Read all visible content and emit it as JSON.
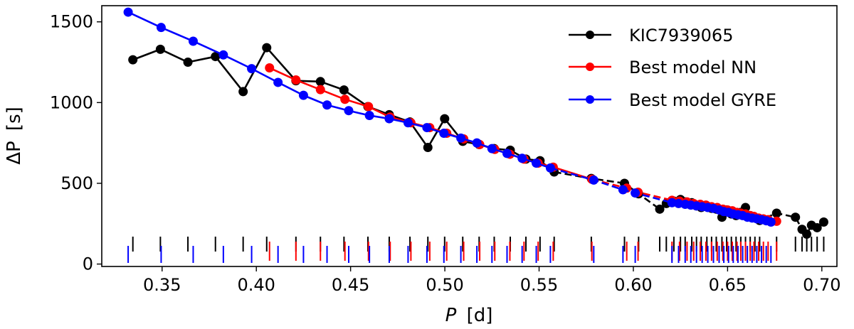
{
  "chart_data": {
    "type": "line",
    "xlabel_var": "P",
    "xlabel_unit": "[d]",
    "ylabel_var": "ΔP",
    "ylabel_unit": "[s]",
    "xlim": [
      0.318,
      0.708
    ],
    "ylim": [
      -15,
      1600
    ],
    "xticks": [
      0.35,
      0.4,
      0.45,
      0.5,
      0.55,
      0.6,
      0.65,
      0.7
    ],
    "xtick_labels": [
      "0.35",
      "0.40",
      "0.45",
      "0.50",
      "0.55",
      "0.60",
      "0.65",
      "0.70"
    ],
    "yticks": [
      0,
      500,
      1000,
      1500
    ],
    "ytick_labels": [
      "0",
      "500",
      "1000",
      "1500"
    ],
    "legend_position": "top-right",
    "series": [
      {
        "name": "KIC7939065",
        "color": "#000000",
        "x": [
          0.3345,
          0.3491,
          0.3637,
          0.3783,
          0.393,
          0.4055,
          0.421,
          0.434,
          0.4465,
          0.4592,
          0.4705,
          0.4815,
          0.491,
          0.4999,
          0.5095,
          0.5182,
          0.5262,
          0.5347,
          0.543,
          0.5505,
          0.558,
          0.5777,
          0.5953,
          0.6028,
          0.614,
          0.6175,
          0.6215,
          0.625,
          0.6275,
          0.631,
          0.6335,
          0.636,
          0.639,
          0.6415,
          0.644,
          0.647,
          0.6495,
          0.652,
          0.6545,
          0.657,
          0.6595,
          0.662,
          0.6645,
          0.667,
          0.676,
          0.686,
          0.6895,
          0.692,
          0.6945,
          0.6975,
          0.701
        ],
        "y": [
          1265,
          1330,
          1250,
          1285,
          1068,
          1340,
          1135,
          1130,
          1078,
          975,
          925,
          880,
          722,
          900,
          760,
          740,
          715,
          705,
          650,
          640,
          570,
          530,
          500,
          435,
          340,
          375,
          390,
          400,
          385,
          380,
          360,
          350,
          360,
          345,
          340,
          290,
          335,
          310,
          300,
          320,
          350,
          300,
          285,
          270,
          315,
          290,
          215,
          185,
          240,
          225,
          260
        ],
        "solid_until_index": 20
      },
      {
        "name": "Best model NN",
        "color": "#ff0000",
        "x": [
          0.407,
          0.421,
          0.434,
          0.447,
          0.4595,
          0.471,
          0.482,
          0.492,
          0.501,
          0.51,
          0.5185,
          0.5265,
          0.5345,
          0.542,
          0.5495,
          0.5575,
          0.578,
          0.5965,
          0.6025,
          0.6205,
          0.6245,
          0.6285,
          0.632,
          0.6355,
          0.6385,
          0.6415,
          0.6445,
          0.6475,
          0.65,
          0.6525,
          0.655,
          0.657,
          0.6595,
          0.662,
          0.664,
          0.6665,
          0.669,
          0.6715,
          0.676
        ],
        "y": [
          1215,
          1140,
          1080,
          1020,
          975,
          910,
          875,
          845,
          810,
          775,
          740,
          710,
          680,
          650,
          625,
          600,
          525,
          470,
          445,
          395,
          390,
          385,
          375,
          370,
          365,
          355,
          350,
          340,
          335,
          330,
          320,
          315,
          310,
          300,
          295,
          285,
          280,
          275,
          265
        ],
        "solid_until_index": 16
      },
      {
        "name": "Best model GYRE",
        "color": "#0000ff",
        "x": [
          0.332,
          0.3495,
          0.3665,
          0.3825,
          0.3975,
          0.4115,
          0.425,
          0.4375,
          0.449,
          0.46,
          0.4705,
          0.4805,
          0.4905,
          0.4995,
          0.5085,
          0.517,
          0.525,
          0.533,
          0.541,
          0.5485,
          0.556,
          0.579,
          0.5945,
          0.601,
          0.6205,
          0.624,
          0.6275,
          0.6305,
          0.6335,
          0.6365,
          0.6395,
          0.6425,
          0.6455,
          0.648,
          0.6505,
          0.653,
          0.6555,
          0.658,
          0.6605,
          0.663,
          0.6655,
          0.668,
          0.6705,
          0.673
        ],
        "y": [
          1560,
          1465,
          1380,
          1295,
          1210,
          1125,
          1045,
          985,
          950,
          920,
          900,
          875,
          845,
          810,
          780,
          750,
          715,
          685,
          655,
          625,
          595,
          520,
          460,
          440,
          380,
          375,
          370,
          365,
          360,
          355,
          350,
          345,
          335,
          325,
          320,
          310,
          305,
          300,
          290,
          285,
          280,
          275,
          268,
          260
        ],
        "solid_until_index": 20
      }
    ]
  }
}
